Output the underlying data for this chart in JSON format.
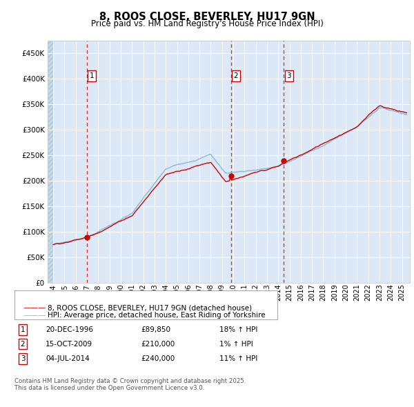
{
  "title": "8, ROOS CLOSE, BEVERLEY, HU17 9GN",
  "subtitle": "Price paid vs. HM Land Registry's House Price Index (HPI)",
  "legend_line1": "8, ROOS CLOSE, BEVERLEY, HU17 9GN (detached house)",
  "legend_line2": "HPI: Average price, detached house, East Riding of Yorkshire",
  "footer_line1": "Contains HM Land Registry data © Crown copyright and database right 2025.",
  "footer_line2": "This data is licensed under the Open Government Licence v3.0.",
  "transactions": [
    {
      "num": "1",
      "date": "20-DEC-1996",
      "price_str": "£89,850",
      "hpi_str": "18% ↑ HPI",
      "year": 1996.97,
      "price": 89850
    },
    {
      "num": "2",
      "date": "15-OCT-2009",
      "price_str": "£210,000",
      "hpi_str": "1% ↑ HPI",
      "year": 2009.79,
      "price": 210000
    },
    {
      "num": "3",
      "date": "04-JUL-2014",
      "price_str": "£240,000",
      "hpi_str": "11% ↑ HPI",
      "year": 2014.5,
      "price": 240000
    }
  ],
  "hpi_color": "#7ab4d8",
  "price_color": "#cc0000",
  "bg_color": "#dce8f5",
  "hatch_bg": "#c5d8e8",
  "white": "#ffffff",
  "grid_color": "#ffffff",
  "label_color": "#333333",
  "ylim": [
    0,
    475000
  ],
  "yticks": [
    0,
    50000,
    100000,
    150000,
    200000,
    250000,
    300000,
    350000,
    400000,
    450000
  ],
  "xmin": 1993.5,
  "xmax": 2025.7,
  "xticks": [
    1994,
    1995,
    1996,
    1997,
    1998,
    1999,
    2000,
    2001,
    2002,
    2003,
    2004,
    2005,
    2006,
    2007,
    2008,
    2009,
    2010,
    2011,
    2012,
    2013,
    2014,
    2015,
    2016,
    2017,
    2018,
    2019,
    2020,
    2021,
    2022,
    2023,
    2024,
    2025
  ]
}
